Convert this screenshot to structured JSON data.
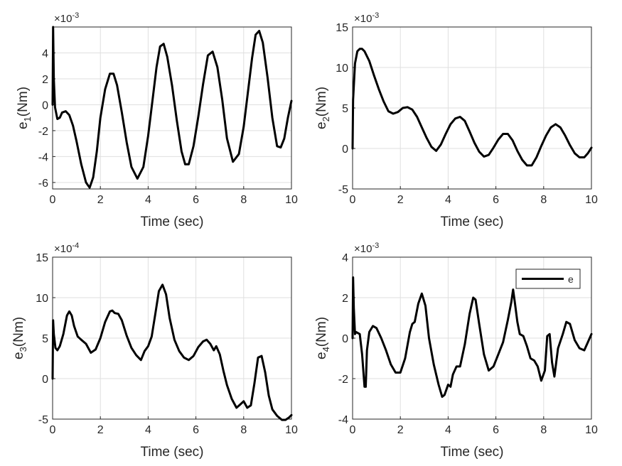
{
  "chart_data": [
    {
      "type": "line",
      "xlabel": "Time (sec)",
      "ylabel": {
        "var": "e",
        "sub": "1",
        "unit": "(Nm)"
      },
      "multiplier": {
        "base": "×10",
        "exp": "-3"
      },
      "xlim": [
        0,
        10
      ],
      "ylim": [
        -6.5,
        6
      ],
      "xticks": [
        0,
        2,
        4,
        6,
        8,
        10
      ],
      "yticks": [
        -6,
        -4,
        -2,
        0,
        2,
        4
      ],
      "tick_labels_x": [
        "0",
        "2",
        "4",
        "6",
        "8",
        "10"
      ],
      "tick_labels_y": [
        "-6",
        "-4",
        "-2",
        "0",
        "2",
        "4"
      ],
      "series": [
        {
          "name": "e",
          "x": [
            0,
            0.02,
            0.05,
            0.1,
            0.2,
            0.3,
            0.4,
            0.55,
            0.7,
            0.85,
            1.0,
            1.2,
            1.4,
            1.55,
            1.7,
            1.85,
            2.0,
            2.2,
            2.4,
            2.55,
            2.7,
            2.9,
            3.1,
            3.3,
            3.55,
            3.8,
            4.0,
            4.2,
            4.35,
            4.5,
            4.65,
            4.8,
            5.0,
            5.2,
            5.4,
            5.55,
            5.7,
            5.9,
            6.1,
            6.3,
            6.5,
            6.7,
            6.9,
            7.1,
            7.3,
            7.55,
            7.8,
            8.0,
            8.2,
            8.35,
            8.5,
            8.65,
            8.8,
            9.0,
            9.2,
            9.4,
            9.55,
            9.7,
            9.85,
            10.0
          ],
          "y": [
            0,
            6.0,
            2.0,
            -0.2,
            -1.1,
            -1.0,
            -0.6,
            -0.5,
            -0.8,
            -1.6,
            -2.8,
            -4.6,
            -6.0,
            -6.4,
            -5.6,
            -3.6,
            -1.0,
            1.2,
            2.4,
            2.4,
            1.5,
            -0.6,
            -2.9,
            -4.8,
            -5.7,
            -4.8,
            -2.4,
            0.6,
            2.9,
            4.5,
            4.7,
            3.7,
            1.5,
            -1.2,
            -3.6,
            -4.6,
            -4.6,
            -3.2,
            -0.9,
            1.6,
            3.8,
            4.1,
            2.9,
            0.4,
            -2.6,
            -4.4,
            -3.8,
            -1.7,
            1.3,
            3.6,
            5.4,
            5.7,
            4.8,
            2.1,
            -1.0,
            -3.2,
            -3.3,
            -2.6,
            -1.0,
            0.3
          ]
        }
      ]
    },
    {
      "type": "line",
      "xlabel": "Time (sec)",
      "ylabel": {
        "var": "e",
        "sub": "2",
        "unit": "(Nm)"
      },
      "multiplier": {
        "base": "×10",
        "exp": "-3"
      },
      "xlim": [
        0,
        10
      ],
      "ylim": [
        -5,
        15
      ],
      "xticks": [
        0,
        2,
        4,
        6,
        8,
        10
      ],
      "yticks": [
        -5,
        0,
        5,
        10,
        15
      ],
      "tick_labels_x": [
        "0",
        "2",
        "4",
        "6",
        "8",
        "10"
      ],
      "tick_labels_y": [
        "-5",
        "0",
        "5",
        "10",
        "15"
      ],
      "series": [
        {
          "name": "e",
          "x": [
            0,
            0.02,
            0.1,
            0.2,
            0.3,
            0.4,
            0.5,
            0.7,
            0.9,
            1.1,
            1.3,
            1.5,
            1.7,
            1.9,
            2.1,
            2.3,
            2.5,
            2.7,
            2.9,
            3.1,
            3.3,
            3.5,
            3.7,
            3.9,
            4.1,
            4.3,
            4.5,
            4.7,
            4.9,
            5.1,
            5.3,
            5.5,
            5.7,
            5.9,
            6.1,
            6.3,
            6.5,
            6.7,
            6.9,
            7.1,
            7.3,
            7.5,
            7.7,
            7.9,
            8.1,
            8.3,
            8.5,
            8.7,
            8.9,
            9.1,
            9.3,
            9.5,
            9.7,
            9.85,
            10.0
          ],
          "y": [
            0,
            6.0,
            10.5,
            12.0,
            12.3,
            12.3,
            12.0,
            10.8,
            9.0,
            7.3,
            5.8,
            4.6,
            4.3,
            4.5,
            5.0,
            5.1,
            4.8,
            3.9,
            2.6,
            1.3,
            0.2,
            -0.3,
            0.5,
            1.8,
            3.0,
            3.7,
            3.9,
            3.4,
            2.1,
            0.7,
            -0.4,
            -1.0,
            -0.8,
            0.1,
            1.1,
            1.8,
            1.8,
            1.0,
            -0.3,
            -1.4,
            -2.1,
            -2.1,
            -1.1,
            0.3,
            1.6,
            2.6,
            3.0,
            2.6,
            1.6,
            0.4,
            -0.6,
            -1.1,
            -1.1,
            -0.6,
            0.1
          ]
        }
      ]
    },
    {
      "type": "line",
      "xlabel": "Time (sec)",
      "ylabel": {
        "var": "e",
        "sub": "3",
        "unit": "(Nm)"
      },
      "multiplier": {
        "base": "×10",
        "exp": "-4"
      },
      "xlim": [
        0,
        10
      ],
      "ylim": [
        -5,
        15
      ],
      "xticks": [
        0,
        2,
        4,
        6,
        8,
        10
      ],
      "yticks": [
        -5,
        0,
        5,
        10,
        15
      ],
      "tick_labels_x": [
        "0",
        "2",
        "4",
        "6",
        "8",
        "10"
      ],
      "tick_labels_y": [
        "-5",
        "0",
        "5",
        "10",
        "15"
      ],
      "series": [
        {
          "name": "e",
          "x": [
            0,
            0.02,
            0.05,
            0.12,
            0.2,
            0.3,
            0.45,
            0.6,
            0.7,
            0.8,
            0.9,
            1.05,
            1.2,
            1.4,
            1.6,
            1.8,
            2.0,
            2.2,
            2.4,
            2.5,
            2.6,
            2.75,
            2.9,
            3.1,
            3.3,
            3.5,
            3.7,
            3.85,
            4.0,
            4.15,
            4.3,
            4.45,
            4.6,
            4.75,
            4.9,
            5.1,
            5.3,
            5.5,
            5.7,
            5.9,
            6.1,
            6.3,
            6.45,
            6.6,
            6.75,
            6.85,
            7.0,
            7.15,
            7.3,
            7.5,
            7.7,
            7.85,
            8.0,
            8.15,
            8.3,
            8.45,
            8.6,
            8.75,
            8.9,
            9.05,
            9.2,
            9.4,
            9.6,
            9.75,
            9.9,
            10.0
          ],
          "y": [
            0,
            7.2,
            5.5,
            3.8,
            3.5,
            4.0,
            5.5,
            7.8,
            8.3,
            7.8,
            6.5,
            5.2,
            4.8,
            4.3,
            3.2,
            3.6,
            5.0,
            7.0,
            8.3,
            8.4,
            8.1,
            8.0,
            7.2,
            5.3,
            3.8,
            2.9,
            2.3,
            3.4,
            4.0,
            5.2,
            8.0,
            10.8,
            11.6,
            10.4,
            7.5,
            4.8,
            3.4,
            2.6,
            2.3,
            2.8,
            3.9,
            4.6,
            4.8,
            4.3,
            3.5,
            4.0,
            3.0,
            1.0,
            -0.8,
            -2.5,
            -3.6,
            -3.2,
            -2.8,
            -3.6,
            -3.3,
            -0.6,
            2.6,
            2.8,
            0.8,
            -2.1,
            -3.8,
            -4.6,
            -5.1,
            -5.1,
            -4.8,
            -4.5
          ]
        }
      ]
    },
    {
      "type": "line",
      "xlabel": "Time (sec)",
      "ylabel": {
        "var": "e",
        "sub": "4",
        "unit": "(Nm)"
      },
      "multiplier": {
        "base": "×10",
        "exp": "-3"
      },
      "xlim": [
        0,
        10
      ],
      "ylim": [
        -4,
        4
      ],
      "xticks": [
        0,
        2,
        4,
        6,
        8,
        10
      ],
      "yticks": [
        -4,
        -2,
        0,
        2,
        4
      ],
      "tick_labels_x": [
        "0",
        "2",
        "4",
        "6",
        "8",
        "10"
      ],
      "tick_labels_y": [
        "-4",
        "-2",
        "0",
        "2",
        "4"
      ],
      "legend": {
        "entries": [
          "e"
        ],
        "location": "top-right"
      },
      "series": [
        {
          "name": "e",
          "x": [
            0,
            0.02,
            0.05,
            0.1,
            0.15,
            0.3,
            0.4,
            0.5,
            0.55,
            0.6,
            0.7,
            0.85,
            1.0,
            1.2,
            1.4,
            1.6,
            1.8,
            2.0,
            2.2,
            2.4,
            2.5,
            2.6,
            2.75,
            2.9,
            3.05,
            3.2,
            3.4,
            3.6,
            3.75,
            3.85,
            4.0,
            4.1,
            4.2,
            4.35,
            4.5,
            4.7,
            4.9,
            5.05,
            5.15,
            5.3,
            5.5,
            5.7,
            5.9,
            6.1,
            6.3,
            6.5,
            6.65,
            6.72,
            6.8,
            6.9,
            7.0,
            7.15,
            7.3,
            7.45,
            7.6,
            7.75,
            7.9,
            8.05,
            8.15,
            8.25,
            8.35,
            8.45,
            8.6,
            8.8,
            8.95,
            9.1,
            9.3,
            9.5,
            9.7,
            9.85,
            10.0
          ],
          "y": [
            0,
            3.0,
            1.5,
            0.2,
            0.3,
            0.2,
            -0.8,
            -2.4,
            -2.4,
            -0.6,
            0.3,
            0.6,
            0.5,
            0.0,
            -0.6,
            -1.3,
            -1.7,
            -1.7,
            -1.0,
            0.3,
            0.7,
            0.8,
            1.7,
            2.2,
            1.6,
            0.0,
            -1.3,
            -2.3,
            -2.9,
            -2.8,
            -2.3,
            -2.4,
            -1.8,
            -1.4,
            -1.4,
            -0.3,
            1.2,
            2.0,
            1.9,
            0.7,
            -0.8,
            -1.6,
            -1.4,
            -0.8,
            -0.2,
            0.9,
            1.8,
            2.4,
            1.7,
            0.8,
            0.2,
            0.1,
            -0.4,
            -1.0,
            -1.1,
            -1.4,
            -2.1,
            -1.6,
            0.1,
            0.2,
            -1.2,
            -1.9,
            -0.5,
            0.2,
            0.8,
            0.7,
            -0.1,
            -0.5,
            -0.6,
            -0.2,
            0.2
          ]
        }
      ]
    }
  ]
}
